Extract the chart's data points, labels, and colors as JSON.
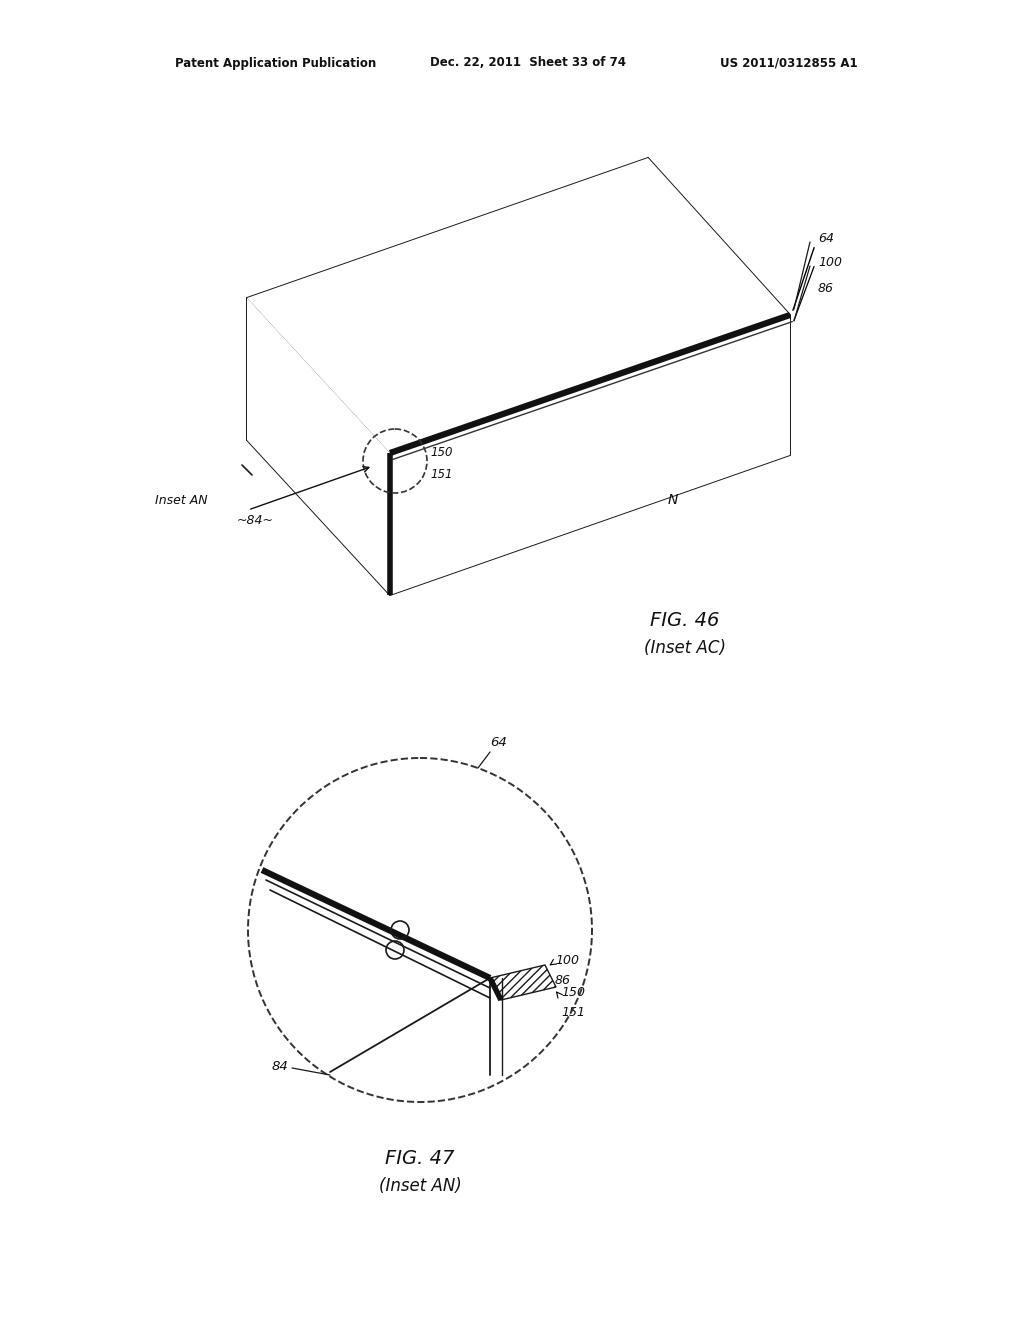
{
  "bg_color": "#ffffff",
  "header_left": "Patent Application Publication",
  "header_mid": "Dec. 22, 2011  Sheet 33 of 74",
  "header_right": "US 2011/0312855 A1",
  "fig46_title": "FIG. 46",
  "fig46_sub": "(Inset AC)",
  "fig47_title": "FIG. 47",
  "fig47_sub": "(Inset AN)"
}
